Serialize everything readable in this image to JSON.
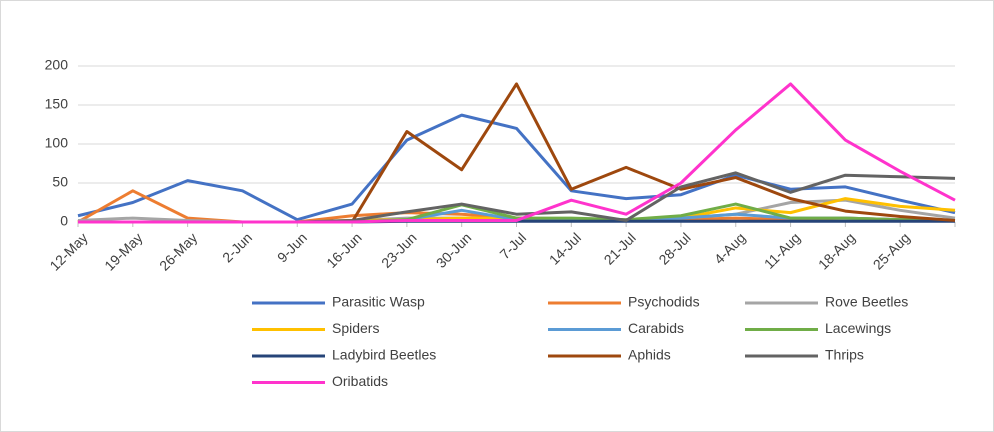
{
  "chart_data": {
    "type": "line",
    "categories": [
      "12-May",
      "19-May",
      "26-May",
      "2-Jun",
      "9-Jun",
      "16-Jun",
      "23-Jun",
      "30-Jun",
      "7-Jul",
      "14-Jul",
      "21-Jul",
      "28-Jul",
      "4-Aug",
      "11-Aug",
      "18-Aug",
      "25-Aug",
      null
    ],
    "ylim": [
      0,
      200
    ],
    "yticks": [
      0,
      50,
      100,
      150,
      200
    ],
    "grid": true,
    "series": [
      {
        "name": "Parasitic Wasp",
        "color": "#4472c4",
        "values": [
          8,
          25,
          53,
          40,
          3,
          23,
          105,
          137,
          120,
          40,
          30,
          35,
          60,
          42,
          45,
          28,
          12
        ]
      },
      {
        "name": "Psychodids",
        "color": "#ed7d31",
        "values": [
          0,
          40,
          5,
          0,
          0,
          8,
          12,
          10,
          5,
          3,
          2,
          3,
          5,
          3,
          5,
          3,
          2
        ]
      },
      {
        "name": "Rove Beetles",
        "color": "#a5a5a5",
        "values": [
          2,
          5,
          2,
          0,
          0,
          2,
          5,
          5,
          3,
          3,
          2,
          5,
          10,
          25,
          28,
          15,
          5
        ]
      },
      {
        "name": "Spiders",
        "color": "#ffc000",
        "values": [
          0,
          0,
          0,
          0,
          0,
          2,
          3,
          5,
          5,
          3,
          2,
          5,
          18,
          12,
          30,
          20,
          15
        ]
      },
      {
        "name": "Carabids",
        "color": "#5b9bd5",
        "values": [
          0,
          0,
          0,
          0,
          0,
          0,
          3,
          15,
          3,
          2,
          2,
          5,
          10,
          5,
          5,
          3,
          2
        ]
      },
      {
        "name": "Lacewings",
        "color": "#70ad47",
        "values": [
          0,
          0,
          0,
          0,
          0,
          0,
          3,
          22,
          5,
          5,
          3,
          8,
          23,
          5,
          5,
          3,
          2
        ]
      },
      {
        "name": "Ladybird Beetles",
        "color": "#264478",
        "values": [
          0,
          0,
          0,
          0,
          0,
          0,
          1,
          1,
          1,
          1,
          1,
          1,
          1,
          1,
          1,
          1,
          1
        ]
      },
      {
        "name": "Aphids",
        "color": "#9e480e",
        "values": [
          null,
          null,
          null,
          null,
          null,
          0,
          116,
          67,
          177,
          42,
          70,
          42,
          57,
          30,
          14,
          7,
          2
        ]
      },
      {
        "name": "Thrips",
        "color": "#636363",
        "values": [
          0,
          0,
          0,
          0,
          0,
          2,
          13,
          23,
          10,
          13,
          2,
          45,
          63,
          38,
          60,
          58,
          56
        ]
      },
      {
        "name": "Oribatids",
        "color": "#ff33cc",
        "values": [
          0,
          0,
          0,
          0,
          0,
          0,
          2,
          2,
          2,
          28,
          10,
          50,
          118,
          177,
          105,
          65,
          28
        ]
      }
    ]
  }
}
